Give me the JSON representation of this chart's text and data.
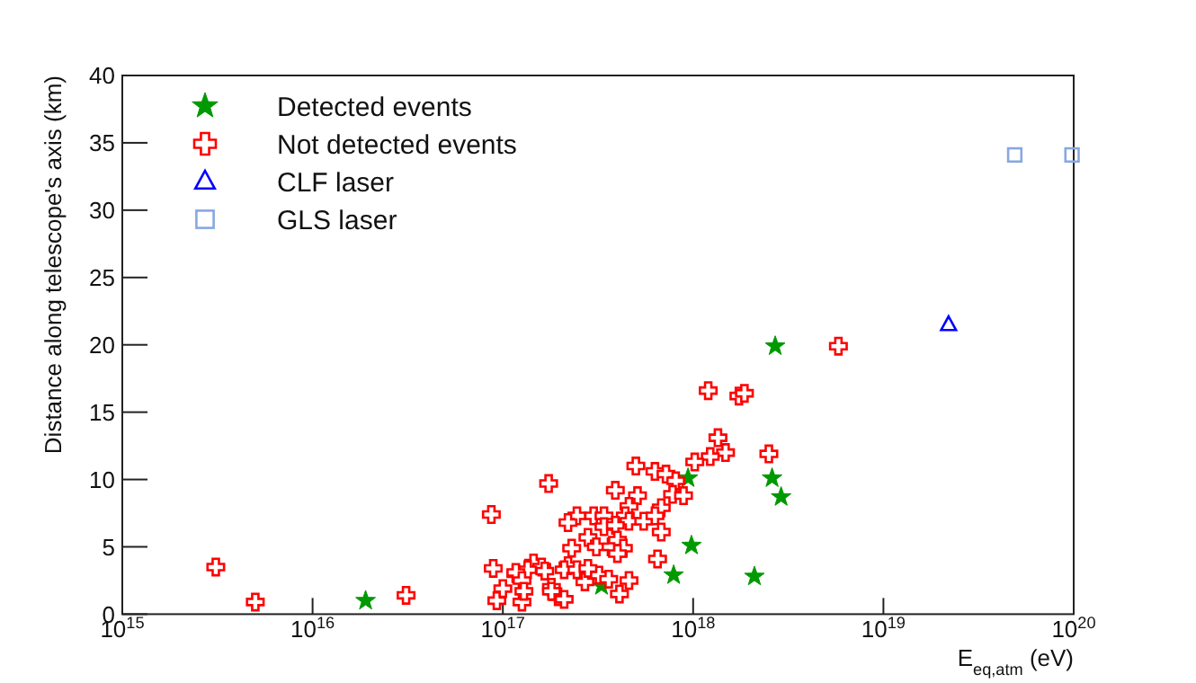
{
  "chart_data": {
    "type": "scatter",
    "xlabel": "E$_{eq,atm}$ (eV)",
    "ylabel": "Distance along telescope's axis (km)",
    "log": "x",
    "xlim": [
      1000000000000000.0,
      1e+20
    ],
    "xticks": [
      {
        "value": 1000000000000000.0,
        "label": "10$^{15}$"
      },
      {
        "value": 1e+16,
        "label": "10$^{16}$"
      },
      {
        "value": 1e+17,
        "label": "10$^{17}$"
      },
      {
        "value": 1e+18,
        "label": "10$^{18}$"
      },
      {
        "value": 1e+19,
        "label": "10$^{19}$"
      },
      {
        "value": 1e+20,
        "label": "10$^{20}$"
      }
    ],
    "ylim": [
      0,
      40
    ],
    "yticks": [
      0,
      5,
      10,
      15,
      20,
      25,
      30,
      35,
      40
    ],
    "grid": false,
    "legend": "top left",
    "series": [
      {
        "name": "Detected events",
        "color": "#009900",
        "marker": "star",
        "x": [
          1.9e+16,
          3.3e+17,
          7.9e+17,
          9.4e+17,
          9.8e+17,
          2.1e+18,
          2.6e+18,
          2.7e+18,
          2.9e+18
        ],
        "values": [
          1.0,
          2.1,
          2.9,
          10.1,
          5.1,
          2.8,
          10.1,
          19.9,
          8.7
        ]
      },
      {
        "name": "Not detected events",
        "color": "#ff0000",
        "marker": "cross",
        "x": [
          3100000000000000.0,
          5000000000000000.0,
          3.1e+16,
          8.7e+16,
          8.9e+16,
          9.3e+16,
          1e+17,
          1.26e+17,
          1.74e+17,
          1.17e+17,
          1.2e+18,
          1.74e+18,
          1.86e+18,
          1.35e+18,
          1.48e+18,
          1.23e+18,
          1.02e+18,
          2.5e+18,
          5e+17,
          6.3e+17,
          7.2e+17,
          8.1e+17,
          3.9e+17,
          5.1e+17,
          7.8e+17,
          8.9e+17,
          6.8e+17,
          4.6e+17,
          2.45e+17,
          3e+17,
          3.4e+17,
          2.2e+17,
          4.4e+17,
          4.6e+17,
          5.5e+17,
          6.3e+17,
          3.4e+17,
          3.9e+17,
          6.8e+17,
          2.8e+17,
          3.1e+17,
          3.7e+17,
          4e+17,
          4.3e+17,
          2.3e+17,
          4e+17,
          6.5e+17,
          2.2e+17,
          2.1e+17,
          1.45e+17,
          1.6e+17,
          1.35e+17,
          1.17e+17,
          1.26e+17,
          1.66e+17,
          2.45e+17,
          3.2e+17,
          3.6e+17,
          4.6e+17,
          1.29e+17,
          1.8e+17,
          1.95e+17,
          2.1e+17,
          4.1e+17,
          1.8e+17,
          2.7e+17,
          2.8e+17,
          5.8e+18
        ],
        "values": [
          3.5,
          0.9,
          1.4,
          7.4,
          3.4,
          1.0,
          1.9,
          0.9,
          9.7,
          3.0,
          16.6,
          16.2,
          16.4,
          13.1,
          12.0,
          11.7,
          11.3,
          11.9,
          11.0,
          10.6,
          10.4,
          9.9,
          9.2,
          8.8,
          8.9,
          8.8,
          7.9,
          8.0,
          7.3,
          7.3,
          7.3,
          6.8,
          7.3,
          6.9,
          6.9,
          7.3,
          6.5,
          6.6,
          6.1,
          5.7,
          5.0,
          5.0,
          5.5,
          4.9,
          4.9,
          4.5,
          4.1,
          3.6,
          3.3,
          3.8,
          3.5,
          3.3,
          3.1,
          2.5,
          3.2,
          3.3,
          2.9,
          2.6,
          2.5,
          1.7,
          2.0,
          1.3,
          1.1,
          1.5,
          1.7,
          2.4,
          3.4,
          19.9
        ]
      },
      {
        "name": "CLF laser",
        "color": "#0000ff",
        "marker": "triangle",
        "x": [
          2.2e+19
        ],
        "values": [
          21.5
        ]
      },
      {
        "name": "GLS laser",
        "color": "#88a8e0",
        "marker": "square",
        "x": [
          4.9e+19,
          9.8e+19
        ],
        "values": [
          34.1,
          34.1
        ]
      }
    ]
  }
}
